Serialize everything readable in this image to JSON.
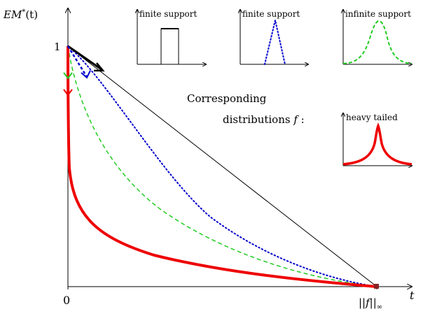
{
  "axes": {
    "y_label_main": "EM",
    "y_label_sup": "*",
    "y_label_arg": "(t)",
    "x_label": "t",
    "origin_label": "0",
    "y_tick_label": "1",
    "x_end_label": "||f||",
    "x_end_sub": "∞"
  },
  "caption": {
    "line1": "Corresponding",
    "line2_prefix": "distributions ",
    "line2_var": "f",
    "line2_suffix": " :"
  },
  "insets": [
    {
      "label": "finite support",
      "shape": "box",
      "color": "#000000",
      "style": "solid"
    },
    {
      "label": "finite support",
      "shape": "triangle",
      "color": "#0000cc",
      "style": "dotted"
    },
    {
      "label": "infinite support",
      "shape": "bell",
      "color": "#22cc22",
      "style": "dashed"
    },
    {
      "label": "heavy tailed",
      "shape": "cusp",
      "color": "#ee0000",
      "style": "solid"
    }
  ],
  "curves": [
    {
      "name": "black-solid",
      "color": "#000000",
      "style": "solid"
    },
    {
      "name": "blue-dotted",
      "color": "#0000cc",
      "style": "dotted"
    },
    {
      "name": "green-dashed",
      "color": "#22cc22",
      "style": "dashed"
    },
    {
      "name": "red-heavy",
      "color": "#ee0000",
      "style": "solid"
    }
  ]
}
